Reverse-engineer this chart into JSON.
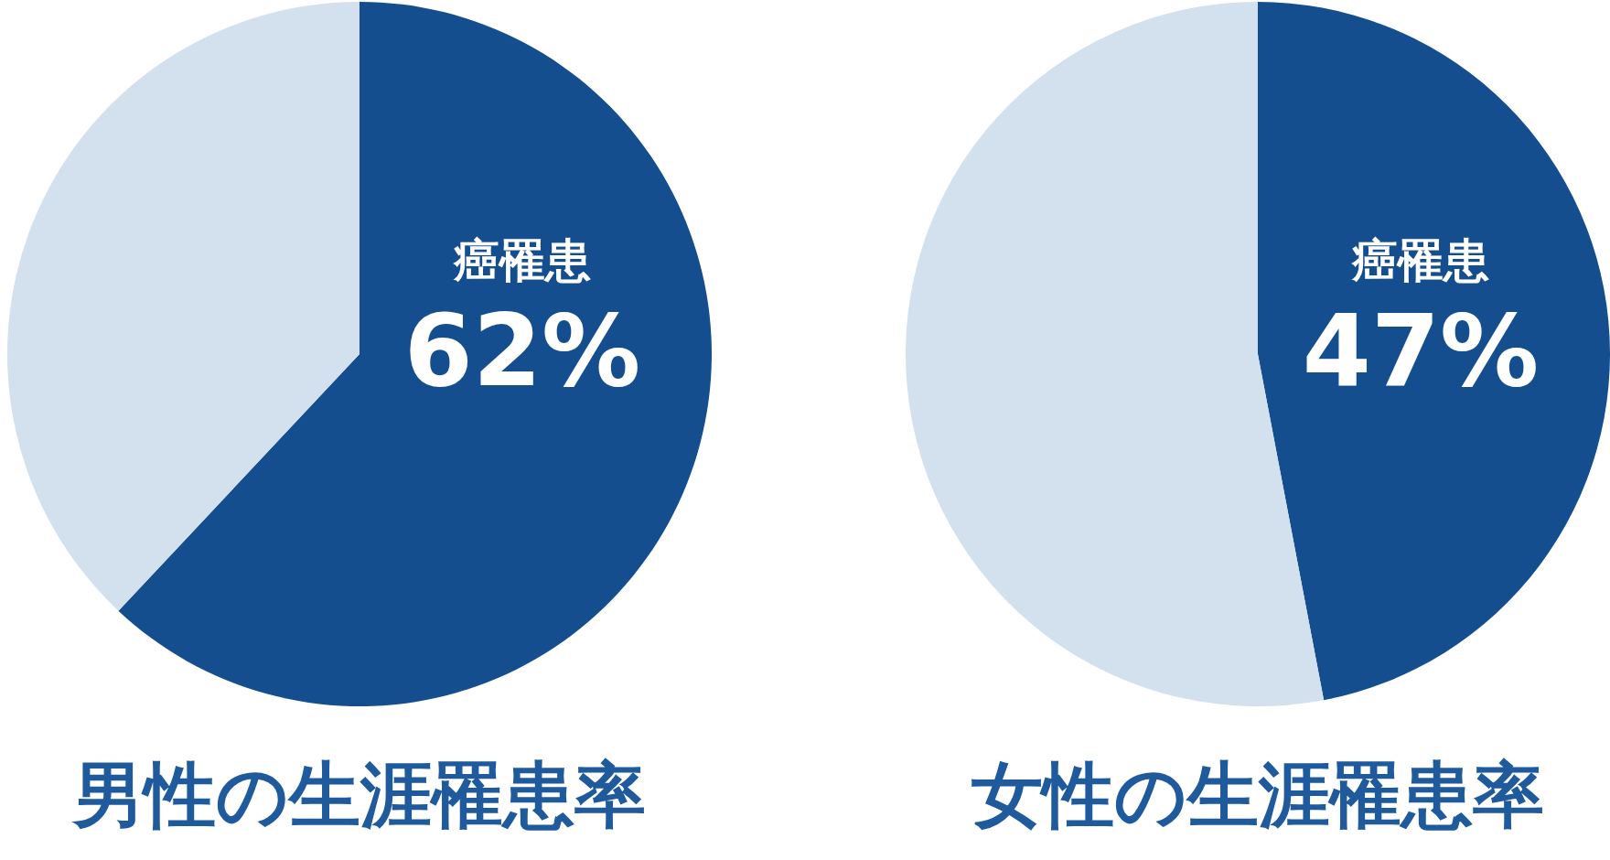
{
  "chart_data": [
    {
      "type": "pie",
      "title": "男性の生涯罹患率",
      "categories": [
        "癌罹患",
        null
      ],
      "values": [
        62,
        38
      ],
      "colors": [
        "#154e8e",
        "#d3e0ee"
      ],
      "value_labels": [
        "62%",
        null
      ]
    },
    {
      "type": "pie",
      "title": "女性の生涯罹患率",
      "categories": [
        "癌罹患",
        null
      ],
      "values": [
        47,
        53
      ],
      "colors": [
        "#154e8e",
        "#d3e0ee"
      ],
      "value_labels": [
        "47%",
        null
      ]
    }
  ]
}
